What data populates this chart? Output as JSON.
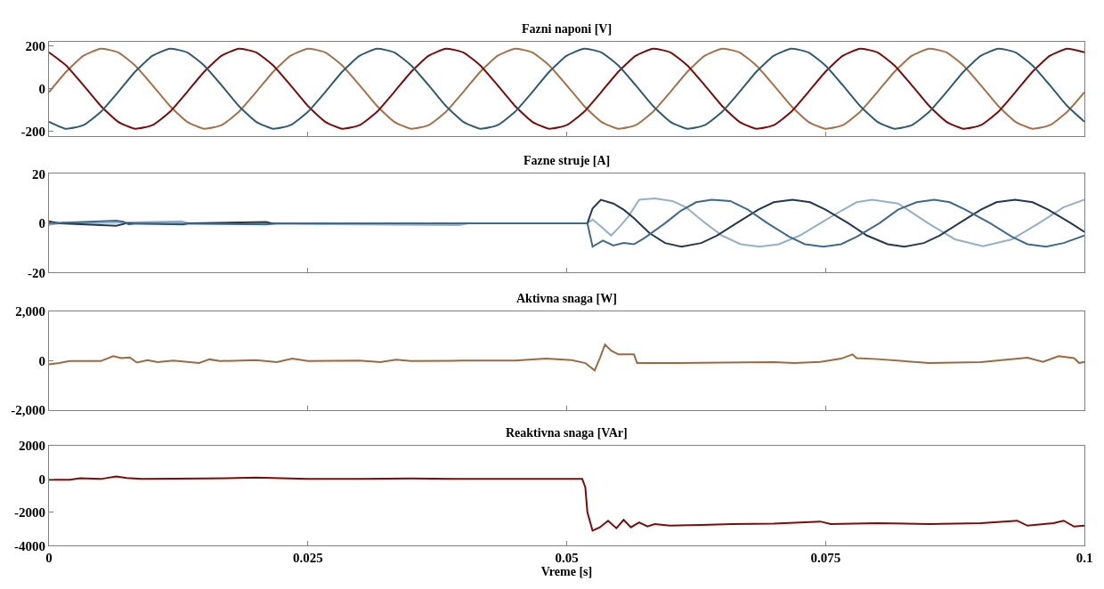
{
  "chart_data": [
    {
      "type": "line",
      "title": "Fazni naponi [V]",
      "tick_labels": "y",
      "xlim": [
        0,
        0.1
      ],
      "xticks": [
        0,
        0.025,
        0.05,
        0.075,
        0.1
      ],
      "ylim": [
        -220,
        220
      ],
      "yticks": [
        -200,
        0,
        200
      ],
      "x": [
        0,
        0.00167,
        0.00333,
        0.005,
        0.00667,
        0.00833,
        0.01,
        0.01167,
        0.01333,
        0.015,
        0.01667,
        0.01833,
        0.02,
        0.02167,
        0.02333,
        0.025,
        0.02667,
        0.02833,
        0.03,
        0.03167,
        0.03333,
        0.035,
        0.03667,
        0.03833,
        0.04,
        0.04167,
        0.04333,
        0.045,
        0.04667,
        0.04833,
        0.05,
        0.05167,
        0.05333,
        0.055,
        0.05667,
        0.05833,
        0.06,
        0.06167,
        0.06333,
        0.065,
        0.06667,
        0.06833,
        0.07,
        0.07167,
        0.07333,
        0.075,
        0.07667,
        0.07833,
        0.08,
        0.08167,
        0.08333,
        0.085,
        0.08667,
        0.08833,
        0.09,
        0.09167,
        0.09333,
        0.095,
        0.09667,
        0.09833,
        0.1
      ],
      "series": [
        {
          "color": "#a4714a",
          "values": [
            -16,
            80,
            154,
            187,
            170,
            108,
            16,
            -80,
            -154,
            -187,
            -170,
            -108,
            -16,
            80,
            154,
            187,
            170,
            108,
            16,
            -80,
            -154,
            -187,
            -170,
            -108,
            -16,
            80,
            154,
            187,
            170,
            108,
            16,
            -80,
            -154,
            -187,
            -170,
            -108,
            -16,
            80,
            154,
            187,
            170,
            108,
            16,
            -80,
            -154,
            -187,
            -170,
            -108,
            -16,
            80,
            154,
            187,
            170,
            108,
            16,
            -80,
            -154,
            -187,
            -170,
            -108,
            -16
          ]
        },
        {
          "color": "#7a0c0c",
          "values": [
            170,
            108,
            16,
            -80,
            -154,
            -187,
            -170,
            -108,
            -16,
            80,
            154,
            187,
            170,
            108,
            16,
            -80,
            -154,
            -187,
            -170,
            -108,
            -16,
            80,
            154,
            187,
            170,
            108,
            16,
            -80,
            -154,
            -187,
            -170,
            -108,
            -16,
            80,
            154,
            187,
            170,
            108,
            16,
            -80,
            -154,
            -187,
            -170,
            -108,
            -16,
            80,
            154,
            187,
            170,
            108,
            16,
            -80,
            -154,
            -187,
            -170,
            -108,
            -16,
            80,
            154,
            187,
            170
          ]
        },
        {
          "color": "#315c6e",
          "values": [
            -154,
            -187,
            -170,
            -108,
            -16,
            80,
            154,
            187,
            170,
            108,
            16,
            -80,
            -154,
            -187,
            -170,
            -108,
            -16,
            80,
            154,
            187,
            170,
            108,
            16,
            -80,
            -154,
            -187,
            -170,
            -108,
            -16,
            80,
            154,
            187,
            170,
            108,
            16,
            -80,
            -154,
            -187,
            -170,
            -108,
            -16,
            80,
            154,
            187,
            170,
            108,
            16,
            -80,
            -154,
            -187,
            -170,
            -108,
            -16,
            80,
            154,
            187,
            170,
            108,
            16,
            -80,
            -154
          ]
        }
      ]
    },
    {
      "type": "line",
      "title": "Fazne struje [A]",
      "tick_labels": "y",
      "xlim": [
        0,
        0.1
      ],
      "xticks": [
        0,
        0.025,
        0.05,
        0.075,
        0.1
      ],
      "ylim": [
        -20,
        20
      ],
      "yticks": [
        -20,
        0,
        20
      ],
      "series": [
        {
          "color": "#95b0c6",
          "x": [
            0,
            0.0015,
            0.003,
            0.0128,
            0.0135,
            0.0396,
            0.0405,
            0.052,
            0.0525,
            0.0535,
            0.0543,
            0.0552,
            0.056,
            0.057,
            0.0585,
            0.0602,
            0.0615,
            0.0634,
            0.065,
            0.0668,
            0.0686,
            0.0705,
            0.0725,
            0.0745,
            0.0765,
            0.078,
            0.0795,
            0.082,
            0.0849,
            0.0875,
            0.0902,
            0.093,
            0.0956,
            0.098,
            0.1
          ],
          "values": [
            -0.7,
            0.3,
            0,
            0.8,
            0,
            -0.8,
            0,
            0,
            1.5,
            -2,
            -5,
            -1,
            3,
            9.5,
            10,
            9,
            6.5,
            0,
            -5,
            -8.5,
            -9.5,
            -8.5,
            -5,
            0,
            5,
            8.5,
            9.5,
            8,
            0,
            -6.5,
            -9.3,
            -6.5,
            0,
            6.5,
            9.5
          ]
        },
        {
          "color": "#24384f",
          "x": [
            0,
            0.001,
            0.0065,
            0.0075,
            0.013,
            0.0135,
            0.021,
            0.0215,
            0.052,
            0.0525,
            0.0533,
            0.0545,
            0.0555,
            0.0565,
            0.058,
            0.0595,
            0.0611,
            0.063,
            0.0645,
            0.0664,
            0.0685,
            0.07,
            0.0718,
            0.0735,
            0.075,
            0.0772,
            0.079,
            0.081,
            0.0826,
            0.0845,
            0.086,
            0.0879,
            0.09,
            0.0915,
            0.0933,
            0.095,
            0.0965,
            0.0987,
            0.1
          ],
          "values": [
            0.8,
            0,
            -1,
            0,
            -0.5,
            0,
            0.5,
            0,
            0,
            6,
            9.5,
            8,
            5.5,
            2,
            -4,
            -8,
            -9.5,
            -8,
            -5,
            0,
            5.5,
            8.5,
            9.5,
            8.5,
            5.5,
            0,
            -5,
            -8.5,
            -9.5,
            -8,
            -5,
            0,
            5.5,
            8.5,
            9.5,
            8.5,
            5.5,
            0,
            -3.5
          ]
        },
        {
          "color": "#41698c",
          "x": [
            0,
            0.0065,
            0.0072,
            0.0077,
            0.0085,
            0.021,
            0.022,
            0.052,
            0.0525,
            0.0535,
            0.0545,
            0.0555,
            0.0565,
            0.0575,
            0.0595,
            0.061,
            0.0625,
            0.064,
            0.0658,
            0.0675,
            0.0694,
            0.0715,
            0.073,
            0.0748,
            0.0765,
            0.078,
            0.0802,
            0.082,
            0.0838,
            0.0855,
            0.087,
            0.0885,
            0.0909,
            0.093,
            0.0945,
            0.0963,
            0.098,
            0.1
          ],
          "values": [
            0,
            1,
            0.6,
            -0.5,
            0,
            -0.5,
            0,
            0,
            -9.5,
            -7,
            -9,
            -8,
            -8.5,
            -6,
            0,
            5,
            8.5,
            9.5,
            9,
            5.5,
            0,
            -5.5,
            -8.5,
            -9.5,
            -8.5,
            -5.5,
            0,
            5.5,
            8.5,
            9.5,
            8.5,
            5.5,
            0,
            -5.5,
            -8.5,
            -9.5,
            -8,
            -5
          ]
        }
      ]
    },
    {
      "type": "line",
      "title": "Aktivna snaga [W]",
      "tick_labels": "y",
      "xlim": [
        0,
        0.1
      ],
      "xticks": [
        0,
        0.025,
        0.05,
        0.075,
        0.1
      ],
      "ylim": [
        -2000,
        2000
      ],
      "yticks": [
        {
          "value": -2000,
          "label": "-2,000"
        },
        0,
        {
          "value": 2000,
          "label": "2,000"
        }
      ],
      "series": [
        {
          "color": "#9b6a42",
          "x": [
            0,
            0.001,
            0.002,
            0.005,
            0.0062,
            0.007,
            0.0078,
            0.0085,
            0.0095,
            0.0105,
            0.012,
            0.0145,
            0.0155,
            0.0165,
            0.02,
            0.022,
            0.0235,
            0.025,
            0.03,
            0.032,
            0.0335,
            0.035,
            0.04,
            0.045,
            0.048,
            0.0505,
            0.0518,
            0.0527,
            0.0532,
            0.0537,
            0.0543,
            0.055,
            0.0565,
            0.0568,
            0.06,
            0.065,
            0.07,
            0.072,
            0.0745,
            0.0765,
            0.0776,
            0.078,
            0.08,
            0.085,
            0.09,
            0.0945,
            0.096,
            0.0975,
            0.099,
            0.0995,
            0.1
          ],
          "values": [
            -150,
            -100,
            -20,
            -20,
            180,
            100,
            130,
            -80,
            20,
            -60,
            0,
            -100,
            50,
            -20,
            20,
            -60,
            80,
            -20,
            0,
            -60,
            40,
            -20,
            0,
            0,
            80,
            20,
            -100,
            -400,
            100,
            650,
            400,
            250,
            250,
            -100,
            -100,
            -80,
            -60,
            -100,
            -50,
            80,
            250,
            100,
            60,
            -100,
            -60,
            120,
            -50,
            180,
            100,
            -100,
            -50
          ]
        }
      ]
    },
    {
      "type": "line",
      "title": "Reaktivna snaga [VAr]",
      "xlabel": "Vreme [s]",
      "xlim": [
        0,
        0.1
      ],
      "xticks": [
        0,
        0.025,
        0.05,
        0.075,
        0.1
      ],
      "ylim": [
        -4000,
        2000
      ],
      "yticks": [
        -4000,
        -2000,
        0,
        2000
      ],
      "series": [
        {
          "color": "#7a0c0c",
          "x": [
            0,
            0.002,
            0.003,
            0.005,
            0.0065,
            0.0075,
            0.009,
            0.015,
            0.02,
            0.025,
            0.03,
            0.035,
            0.04,
            0.045,
            0.0515,
            0.0518,
            0.052,
            0.0525,
            0.0532,
            0.054,
            0.0548,
            0.0555,
            0.0562,
            0.057,
            0.0578,
            0.0585,
            0.06,
            0.063,
            0.066,
            0.07,
            0.0745,
            0.0755,
            0.08,
            0.085,
            0.09,
            0.0935,
            0.0945,
            0.097,
            0.098,
            0.099,
            0.1
          ],
          "values": [
            -50,
            -50,
            40,
            0,
            150,
            60,
            0,
            30,
            80,
            0,
            0,
            30,
            0,
            0,
            0,
            -500,
            -2000,
            -3100,
            -2900,
            -2500,
            -2950,
            -2450,
            -2900,
            -2600,
            -2850,
            -2700,
            -2800,
            -2750,
            -2700,
            -2680,
            -2550,
            -2700,
            -2650,
            -2700,
            -2650,
            -2500,
            -2800,
            -2650,
            -2500,
            -2850,
            -2800
          ]
        }
      ]
    }
  ]
}
